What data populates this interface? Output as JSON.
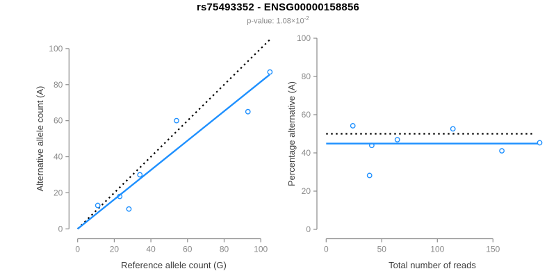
{
  "header": {
    "title": "rs75493352 - ENSG00000158856",
    "subtitle_prefix": "p-value: 1.08×10",
    "subtitle_exponent": "-2"
  },
  "colors": {
    "accent_blue": "#1E90FF",
    "dotted_black": "#000000",
    "axis_line": "#8a8a8a",
    "tick_label": "#8a8a8a",
    "axis_title": "#3d3d3d",
    "title": "#000000",
    "subtitle": "#8a8a8a",
    "background": "#ffffff",
    "point_fill": "none"
  },
  "chart_data": [
    {
      "name": "allele-counts",
      "type": "scatter",
      "xlabel": "Reference allele count (G)",
      "ylabel": "Alternative allele count (A)",
      "xlim": [
        0,
        105
      ],
      "ylim": [
        0,
        100
      ],
      "xticks": [
        0,
        20,
        40,
        60,
        80,
        100
      ],
      "yticks": [
        0,
        20,
        40,
        60,
        80,
        100
      ],
      "grid": false,
      "legend": null,
      "points": [
        [
          11,
          13
        ],
        [
          23,
          18
        ],
        [
          28,
          11
        ],
        [
          34,
          30
        ],
        [
          54,
          60
        ],
        [
          93,
          65
        ],
        [
          105,
          87
        ]
      ],
      "lines": [
        {
          "name": "identity-line",
          "style": "dotted",
          "color": "#000000",
          "from": [
            0,
            0
          ],
          "to": [
            105.5,
            105.5
          ]
        },
        {
          "name": "fit-line",
          "style": "solid",
          "color": "#1E90FF",
          "slope": 0.816,
          "from": [
            0,
            0
          ],
          "to": [
            104.8,
            85.5
          ]
        }
      ]
    },
    {
      "name": "percentage-alternative",
      "type": "scatter",
      "xlabel": "Total number of reads",
      "ylabel": "Percentage alternative (A)",
      "xlim": [
        0,
        192
      ],
      "ylim": [
        0,
        100
      ],
      "xticks": [
        0,
        50,
        100,
        150
      ],
      "yticks": [
        0,
        20,
        40,
        60,
        80,
        100
      ],
      "grid": false,
      "legend": null,
      "points": [
        [
          24,
          54.2
        ],
        [
          41,
          43.9
        ],
        [
          39,
          28.2
        ],
        [
          64,
          46.9
        ],
        [
          114,
          52.6
        ],
        [
          158,
          41.1
        ],
        [
          192,
          45.3
        ]
      ],
      "lines": [
        {
          "name": "expected-50pct-line",
          "style": "dotted",
          "color": "#000000",
          "y": 50,
          "from": [
            0,
            50
          ],
          "to": [
            188,
            50
          ]
        },
        {
          "name": "observed-mean-line",
          "style": "solid",
          "color": "#1E90FF",
          "y": 44.9,
          "from": [
            0,
            44.9
          ],
          "to": [
            190.6,
            44.9
          ]
        }
      ]
    }
  ]
}
